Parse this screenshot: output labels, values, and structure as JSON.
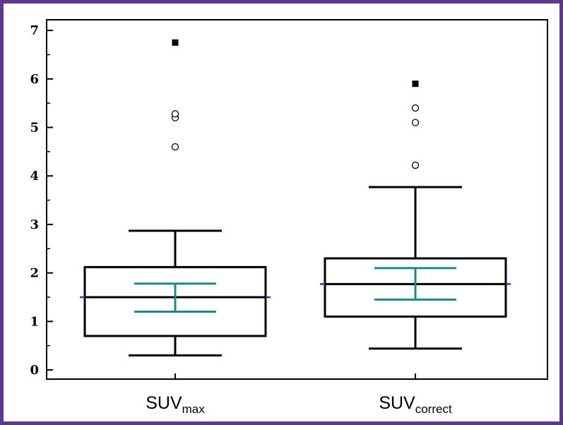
{
  "chart_data": {
    "type": "box",
    "title": "",
    "xlabel": "",
    "ylabel": "",
    "ylim": [
      0,
      7
    ],
    "yticks": [
      0,
      1,
      2,
      3,
      4,
      5,
      6,
      7
    ],
    "yticks_label": [
      "0",
      "1",
      "2",
      "3",
      "4",
      "5",
      "6",
      "7"
    ],
    "grid": false,
    "legend": "none",
    "colors": {
      "box": "#000000",
      "median": "#000000",
      "mean_line": "#2b3a8c",
      "ci": "#1a8a8a",
      "frame": "#5b3a8a"
    },
    "categories": [
      {
        "main": "SUV",
        "sub": "max"
      },
      {
        "main": "SUV",
        "sub": "correct"
      }
    ],
    "boxes": [
      {
        "whisker_low": 0.3,
        "q1": 0.7,
        "median": 1.5,
        "q3": 2.12,
        "whisker_high": 2.87,
        "mean": 1.5,
        "ci_low": 1.2,
        "ci_high": 1.78,
        "outliers_open": [
          4.6,
          5.2,
          5.28
        ],
        "outliers_far": [
          6.75
        ]
      },
      {
        "whisker_low": 0.44,
        "q1": 1.1,
        "median": 1.77,
        "q3": 2.3,
        "whisker_high": 3.77,
        "mean": 1.77,
        "ci_low": 1.45,
        "ci_high": 2.1,
        "outliers_open": [
          4.22,
          5.1,
          5.4
        ],
        "outliers_far": [
          5.9
        ]
      }
    ]
  }
}
